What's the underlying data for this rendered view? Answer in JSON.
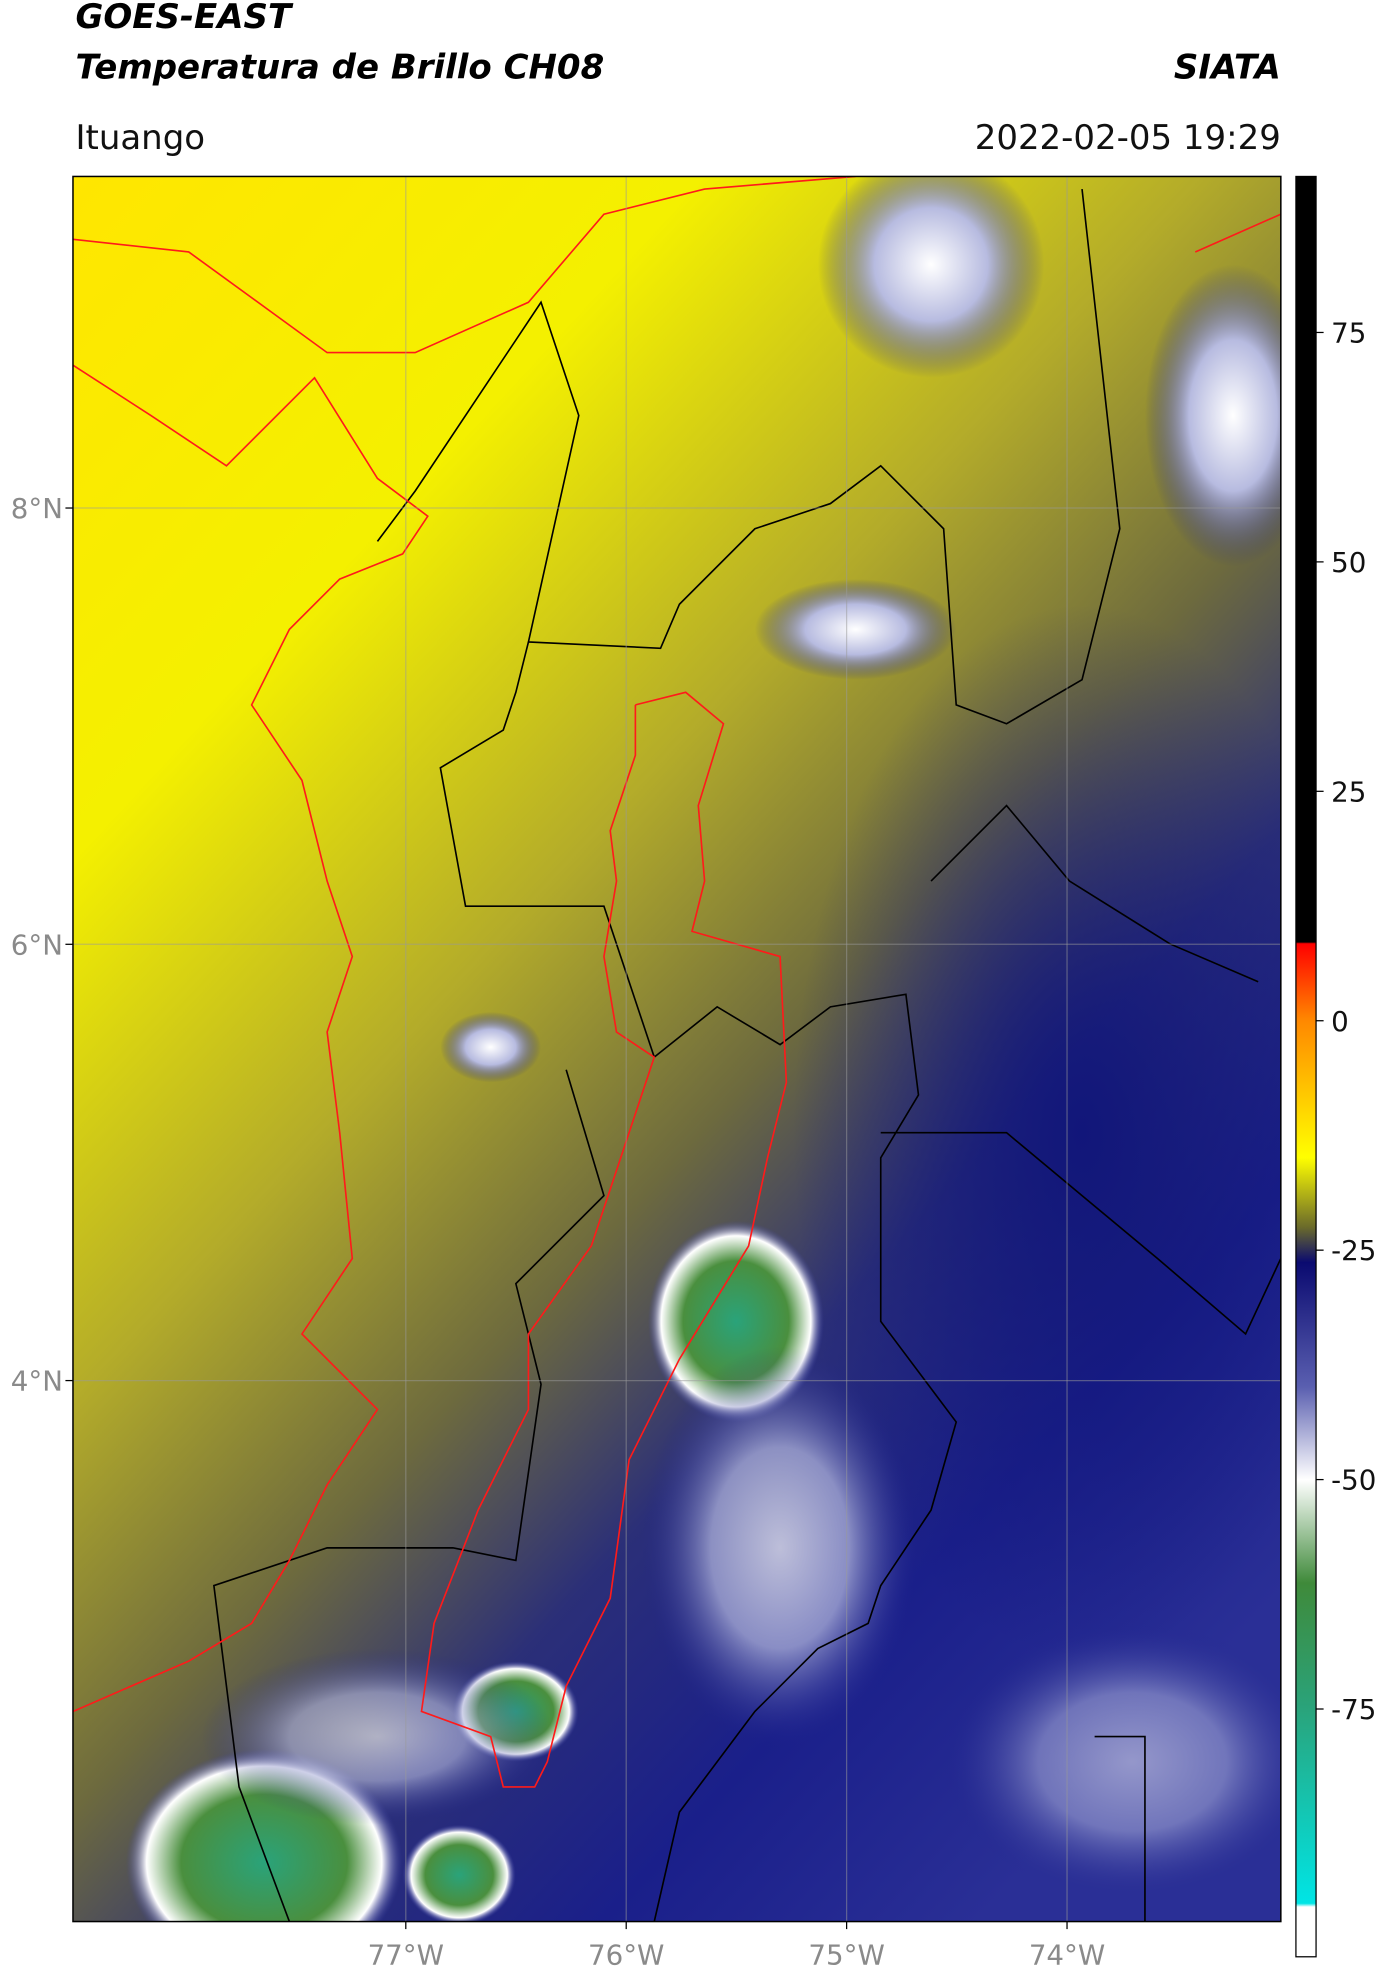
{
  "header": {
    "title": "GOES-EAST",
    "subtitle": "Temperatura de Brillo CH08",
    "source": "SIATA",
    "location": "Ituango",
    "datetime": "2022-02-05 19:29"
  },
  "map": {
    "xlim": [
      -78.51,
      -73.03
    ],
    "ylim": [
      1.52,
      9.52
    ],
    "xticks": [
      {
        "value": -77,
        "label": "77°W"
      },
      {
        "value": -76,
        "label": "76°W"
      },
      {
        "value": -75,
        "label": "75°W"
      },
      {
        "value": -74,
        "label": "74°W"
      }
    ],
    "yticks": [
      {
        "value": 8,
        "label": "8°N"
      },
      {
        "value": 6,
        "label": "6°N"
      },
      {
        "value": 4,
        "label": "4°N"
      }
    ],
    "grid": true
  },
  "colorbar": {
    "lim": [
      -102,
      92
    ],
    "ticks": [
      75,
      50,
      25,
      0,
      -25,
      -50,
      -75
    ]
  }
}
